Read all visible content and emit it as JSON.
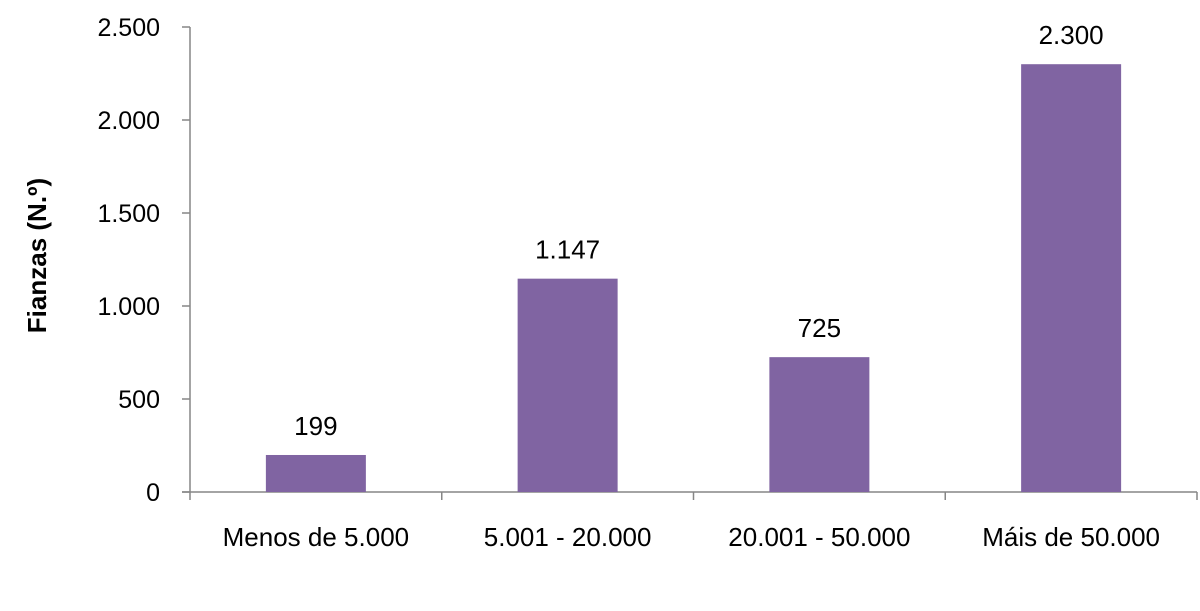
{
  "chart_data": {
    "type": "bar",
    "title": "",
    "xlabel": "",
    "ylabel": "Fianzas (N.º)",
    "categories": [
      "Menos de 5.000",
      "5.001 - 20.000",
      "20.001 - 50.000",
      "Máis de 50.000"
    ],
    "values": [
      199,
      1147,
      725,
      2300
    ],
    "data_labels": [
      "199",
      "1.147",
      "725",
      "2.300"
    ],
    "ylim": [
      0,
      2500
    ],
    "yticks": [
      0,
      500,
      1000,
      1500,
      2000,
      2500
    ],
    "ytick_labels": [
      "0",
      "500",
      "1.000",
      "1.500",
      "2.000",
      "2.500"
    ],
    "bar_color": "#8064A2",
    "grid": false,
    "legend": "none"
  }
}
